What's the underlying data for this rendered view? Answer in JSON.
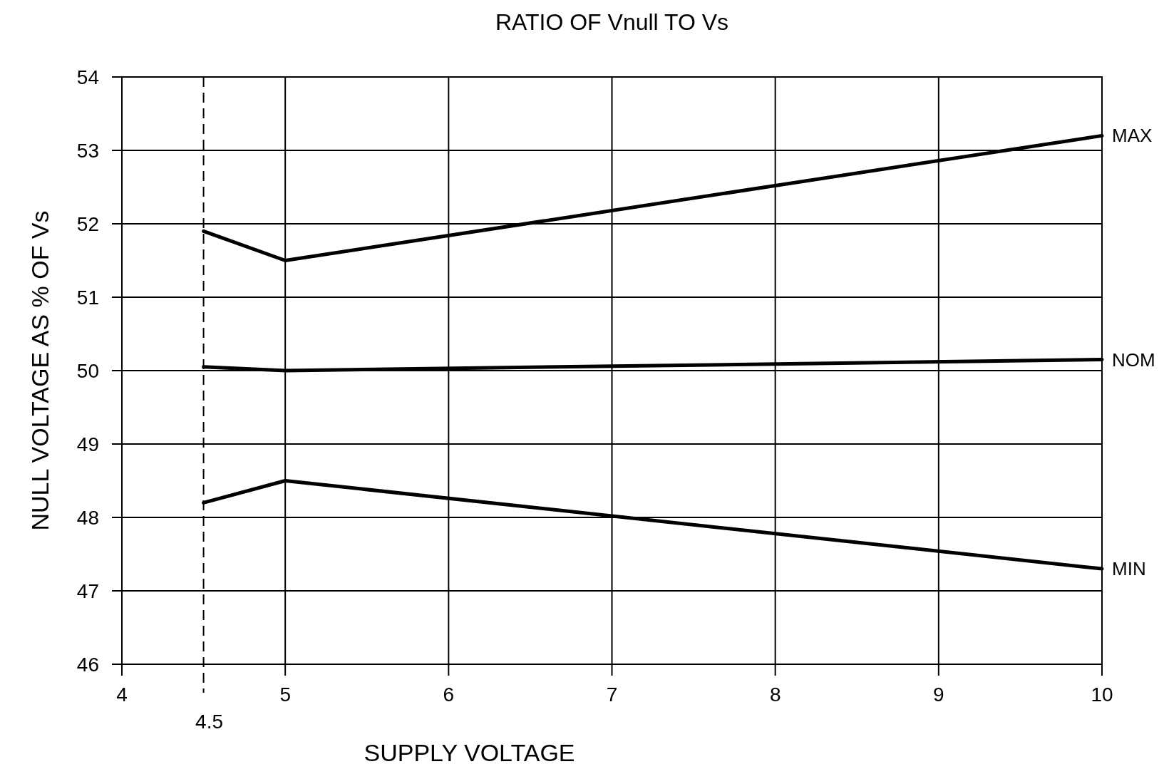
{
  "chart_data": {
    "type": "line",
    "title": "RATIO OF Vnull TO Vs",
    "xlabel": "SUPPLY VOLTAGE",
    "ylabel": "NULL VOLTAGE AS % OF Vs",
    "x": [
      4.5,
      5,
      10
    ],
    "series": [
      {
        "name": "MAX",
        "color": "#000000",
        "values": [
          51.9,
          51.5,
          53.2
        ]
      },
      {
        "name": "NOM",
        "color": "#000000",
        "values": [
          50.05,
          50.0,
          50.15
        ]
      },
      {
        "name": "MIN",
        "color": "#000000",
        "values": [
          48.2,
          48.5,
          47.3
        ]
      }
    ],
    "xlim": [
      4,
      10
    ],
    "xticks": [
      4,
      5,
      6,
      7,
      8,
      9,
      10
    ],
    "ylim": [
      46,
      54
    ],
    "yticks": [
      46,
      47,
      48,
      49,
      50,
      51,
      52,
      53,
      54
    ],
    "grid": true,
    "marker": "none",
    "line_style": "solid",
    "ref_lines": [
      {
        "axis": "x",
        "value": 4.5,
        "label": "4.5",
        "line_style": "dashed"
      }
    ]
  }
}
